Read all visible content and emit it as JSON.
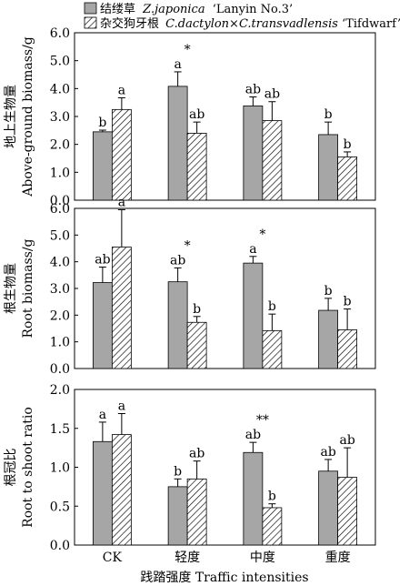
{
  "legend": [
    {
      "cn": "结缕草",
      "latin": "Z.japonica",
      "cultivar": "‘Lanyin No.3’",
      "pattern": "gray"
    },
    {
      "cn": "杂交狗牙根",
      "latin": "C.dactylon×C.transvadlensis",
      "cultivar": "‘Tifdwarf’",
      "pattern": "hatch"
    }
  ],
  "xlabel": "践踏强度 Traffic intensities",
  "chart_data": [
    {
      "type": "bar",
      "ylabel_cn": "地上生物量",
      "ylabel_en": "Above-ground biomass/g",
      "ylim": [
        0,
        6
      ],
      "yticks": [
        "0.0",
        "1.0",
        "2.0",
        "3.0",
        "4.0",
        "5.0",
        "6.0"
      ],
      "categories": [
        "CK",
        "轻度",
        "中度",
        "重度"
      ],
      "series": [
        {
          "name": "结缕草 Z.japonica ‘Lanyin No.3’",
          "values": [
            2.45,
            4.08,
            3.38,
            2.35
          ],
          "errors": [
            0.06,
            0.52,
            0.32,
            0.45
          ],
          "labels": [
            "b",
            "a",
            "ab",
            "b"
          ]
        },
        {
          "name": "杂交狗牙根 C.dactylon×C.transvadlensis ‘Tifdwarf’",
          "values": [
            3.25,
            2.4,
            2.85,
            1.55
          ],
          "errors": [
            0.42,
            0.4,
            0.68,
            0.18
          ],
          "labels": [
            "a",
            "ab",
            "ab",
            "b"
          ]
        }
      ],
      "significance": [
        "",
        "*",
        "",
        ""
      ]
    },
    {
      "type": "bar",
      "ylabel_cn": "根生物量",
      "ylabel_en": "Root biomass/g",
      "ylim": [
        0,
        6
      ],
      "yticks": [
        "0.0",
        "1.0",
        "2.0",
        "3.0",
        "4.0",
        "5.0",
        "6.0"
      ],
      "categories": [
        "CK",
        "轻度",
        "中度",
        "重度"
      ],
      "series": [
        {
          "name": "结缕草 Z.japonica ‘Lanyin No.3’",
          "values": [
            3.22,
            3.25,
            3.95,
            2.18
          ],
          "errors": [
            0.58,
            0.52,
            0.25,
            0.45
          ],
          "labels": [
            "ab",
            "ab",
            "a",
            "b"
          ]
        },
        {
          "name": "杂交狗牙根 C.dactylon×C.transvadlensis ‘Tifdwarf’",
          "values": [
            4.55,
            1.73,
            1.42,
            1.45
          ],
          "errors": [
            1.4,
            0.22,
            0.62,
            0.78
          ],
          "labels": [
            "a",
            "b",
            "b",
            "b"
          ]
        }
      ],
      "significance": [
        "",
        "*",
        "*",
        ""
      ]
    },
    {
      "type": "bar",
      "ylabel_cn": "根冠比",
      "ylabel_en": "Root to shoot ratio",
      "ylim": [
        0,
        2
      ],
      "yticks": [
        "0.0",
        "0.5",
        "1.0",
        "1.5",
        "2.0"
      ],
      "categories": [
        "CK",
        "轻度",
        "中度",
        "重度"
      ],
      "series": [
        {
          "name": "结缕草 Z.japonica ‘Lanyin No.3’",
          "values": [
            1.33,
            0.75,
            1.19,
            0.95
          ],
          "errors": [
            0.25,
            0.1,
            0.13,
            0.15
          ],
          "labels": [
            "a",
            "b",
            "ab",
            "ab"
          ]
        },
        {
          "name": "杂交狗牙根 C.dactylon×C.transvadlensis ‘Tifdwarf’",
          "values": [
            1.42,
            0.85,
            0.48,
            0.87
          ],
          "errors": [
            0.27,
            0.23,
            0.05,
            0.38
          ],
          "labels": [
            "a",
            "ab",
            "b",
            "ab"
          ]
        }
      ],
      "significance": [
        "",
        "",
        "**",
        ""
      ]
    }
  ]
}
